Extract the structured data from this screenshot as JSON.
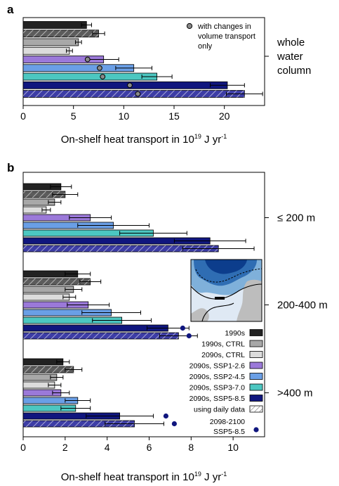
{
  "chart_data": [
    {
      "panel_label": "a",
      "type": "bar",
      "orientation": "horizontal",
      "xlabel": "On-shelf heat transport in 10",
      "xlabel_sup": "19",
      "xlabel_unit": " J yr",
      "xlabel_unit_sup": "-1",
      "xlim": [
        0,
        24
      ],
      "xticks": [
        0,
        5,
        10,
        15,
        20
      ],
      "group_labels": [
        [
          "whole",
          "water",
          "column"
        ]
      ],
      "legend_text": [
        "with changes in",
        "volume transport",
        "only"
      ],
      "legend_position": "top-right",
      "bars": [
        {
          "scenario": "1990s",
          "value": 6.3,
          "err": 0.5
        },
        {
          "scenario": "1990s",
          "daily": true,
          "value": 7.5,
          "err": 0.6
        },
        {
          "scenario": "1990s, CTRL",
          "value": 5.5,
          "err": 0.3
        },
        {
          "scenario": "2090s, CTRL",
          "value": 4.6,
          "err": 0.3
        },
        {
          "scenario": "2090s, SSP1-2.6",
          "value": 8.0,
          "err": 1.5,
          "volume_only": 6.4
        },
        {
          "scenario": "2090s, SSP2-4.5",
          "value": 11.0,
          "err": 1.8,
          "volume_only": 7.6
        },
        {
          "scenario": "2090s, SSP3-7.0",
          "value": 13.3,
          "err": 1.5,
          "volume_only": 7.9
        },
        {
          "scenario": "2090s, SSP5-8.5",
          "value": 20.3,
          "err": 1.7,
          "volume_only": 10.6
        },
        {
          "scenario": "2090s, SSP5-8.5",
          "daily": true,
          "value": 22.0,
          "err": 1.8,
          "volume_only": 11.4
        }
      ]
    },
    {
      "panel_label": "b",
      "type": "bar",
      "orientation": "horizontal",
      "xlabel": "On-shelf heat transport in 10",
      "xlabel_sup": "19",
      "xlabel_unit": " J yr",
      "xlabel_unit_sup": "-1",
      "xlim": [
        0,
        11.5
      ],
      "xticks": [
        0,
        2,
        4,
        6,
        8,
        10
      ],
      "legend_position": "bottom-right",
      "legend": [
        {
          "label": "1990s",
          "color": "#222222"
        },
        {
          "label": "1990s, CTRL",
          "color": "#a8a8a8"
        },
        {
          "label": "2090s, CTRL",
          "color": "#dcdcdc"
        },
        {
          "label": "2090s, SSP1-2.6",
          "color": "#9b79d9"
        },
        {
          "label": "2090s, SSP2-4.5",
          "color": "#6a9fe6"
        },
        {
          "label": "2090s, SSP3-7.0",
          "color": "#4cc7c1"
        },
        {
          "label": "2090s, SSP5-8.5",
          "color": "#10167e"
        },
        {
          "label": "using daily data",
          "hatch": true
        },
        {
          "label": "2098-2100\nSSP5-8.5",
          "dot": true,
          "color": "#10167e"
        }
      ],
      "groups": [
        {
          "label": "≤ 200 m",
          "bars": [
            {
              "scenario": "1990s",
              "value": 1.8,
              "err": 0.5
            },
            {
              "scenario": "1990s",
              "daily": true,
              "value": 2.0,
              "err": 0.6
            },
            {
              "scenario": "1990s, CTRL",
              "value": 1.5,
              "err": 0.3
            },
            {
              "scenario": "2090s, CTRL",
              "value": 1.1,
              "err": 0.2
            },
            {
              "scenario": "2090s, SSP1-2.6",
              "value": 3.2,
              "err": 1.0
            },
            {
              "scenario": "2090s, SSP2-4.5",
              "value": 4.3,
              "err": 1.7
            },
            {
              "scenario": "2090s, SSP3-7.0",
              "value": 6.2,
              "err": 1.6
            },
            {
              "scenario": "2090s, SSP5-8.5",
              "value": 8.9,
              "err": 1.7
            },
            {
              "scenario": "2090s, SSP5-8.5",
              "daily": true,
              "value": 9.3,
              "err": 1.7
            }
          ]
        },
        {
          "label": "200-400 m",
          "bars": [
            {
              "scenario": "1990s",
              "value": 2.6,
              "err": 0.6
            },
            {
              "scenario": "1990s",
              "daily": true,
              "value": 3.2,
              "err": 0.5
            },
            {
              "scenario": "1990s, CTRL",
              "value": 2.4,
              "err": 0.4
            },
            {
              "scenario": "2090s, CTRL",
              "value": 2.2,
              "err": 0.3
            },
            {
              "scenario": "2090s, SSP1-2.6",
              "value": 3.1,
              "err": 1.0
            },
            {
              "scenario": "2090s, SSP2-4.5",
              "value": 4.2,
              "err": 1.4
            },
            {
              "scenario": "2090s, SSP3-7.0",
              "value": 4.7,
              "err": 1.4
            },
            {
              "scenario": "2090s, SSP5-8.5",
              "value": 6.9,
              "err": 1.0,
              "dot": 7.6
            },
            {
              "scenario": "2090s, SSP5-8.5",
              "daily": true,
              "value": 7.4,
              "err": 0.9,
              "dot": 7.9
            }
          ]
        },
        {
          "label": ">400 m",
          "bars": [
            {
              "scenario": "1990s",
              "value": 1.9,
              "err": 0.3
            },
            {
              "scenario": "1990s",
              "daily": true,
              "value": 2.4,
              "err": 0.4
            },
            {
              "scenario": "1990s, CTRL",
              "value": 1.6,
              "err": 0.3
            },
            {
              "scenario": "2090s, CTRL",
              "value": 1.5,
              "err": 0.3
            },
            {
              "scenario": "2090s, SSP1-2.6",
              "value": 1.8,
              "err": 0.4
            },
            {
              "scenario": "2090s, SSP2-4.5",
              "value": 2.6,
              "err": 0.6
            },
            {
              "scenario": "2090s, SSP3-7.0",
              "value": 2.5,
              "err": 0.7
            },
            {
              "scenario": "2090s, SSP5-8.5",
              "value": 4.6,
              "err": 1.6,
              "dot": 6.8
            },
            {
              "scenario": "2090s, SSP5-8.5",
              "daily": true,
              "value": 5.3,
              "err": 1.4,
              "dot": 7.2
            }
          ]
        }
      ]
    }
  ],
  "colors": {
    "1990s": "#222222",
    "1990s, CTRL": "#a8a8a8",
    "2090s, CTRL": "#dcdcdc",
    "2090s, SSP1-2.6": "#9b79d9",
    "2090s, SSP2-4.5": "#6a9fe6",
    "2090s, SSP3-7.0": "#4cc7c1",
    "2090s, SSP5-8.5": "#10167e",
    "daily_dark": "#3d3da6",
    "daily_grey": "#5c5c5c",
    "volume_dot": "#8a8a8a"
  }
}
